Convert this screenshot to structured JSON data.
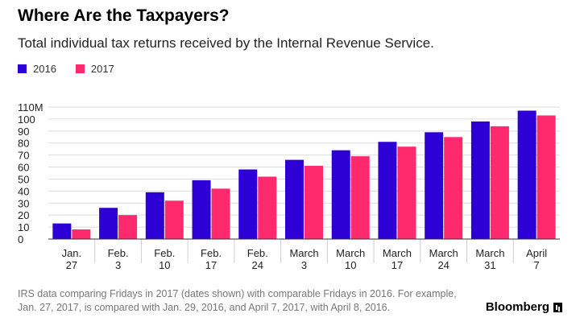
{
  "colors": {
    "series_2016": "#2d00d6",
    "series_2017": "#ff2a6d"
  },
  "footnote": "IRS data comparing Fridays in 2017 (dates shown) with comparable Fridays in 2016. For example, Jan. 27, 2017, is compared with Jan. 29, 2016, and April 7, 2017, with April 8, 2016.",
  "brand": {
    "name": "Bloomberg",
    "logo_icon": "bloomberg-logo-icon"
  },
  "chart_data": {
    "type": "bar",
    "title": "Where Are the Taxpayers?",
    "subtitle": "Total individual tax returns received by the Internal Revenue Service.",
    "categories": [
      [
        "Jan.",
        "27"
      ],
      [
        "Feb.",
        "3"
      ],
      [
        "Feb.",
        "10"
      ],
      [
        "Feb.",
        "17"
      ],
      [
        "Feb.",
        "24"
      ],
      [
        "March",
        "3"
      ],
      [
        "March",
        "10"
      ],
      [
        "March",
        "17"
      ],
      [
        "March",
        "24"
      ],
      [
        "March",
        "31"
      ],
      [
        "April",
        "7"
      ]
    ],
    "series": [
      {
        "name": "2016",
        "values": [
          13,
          26,
          39,
          49,
          58,
          66,
          74,
          81,
          89,
          98,
          107
        ]
      },
      {
        "name": "2017",
        "values": [
          8,
          20,
          32,
          42,
          52,
          61,
          69,
          77,
          85,
          94,
          103
        ]
      }
    ],
    "yticks": [
      "0",
      "10",
      "20",
      "30",
      "40",
      "50",
      "60",
      "70",
      "80",
      "90",
      "100",
      "110M"
    ],
    "ylim": [
      0,
      110
    ],
    "legend": "top-left",
    "grid": true
  }
}
